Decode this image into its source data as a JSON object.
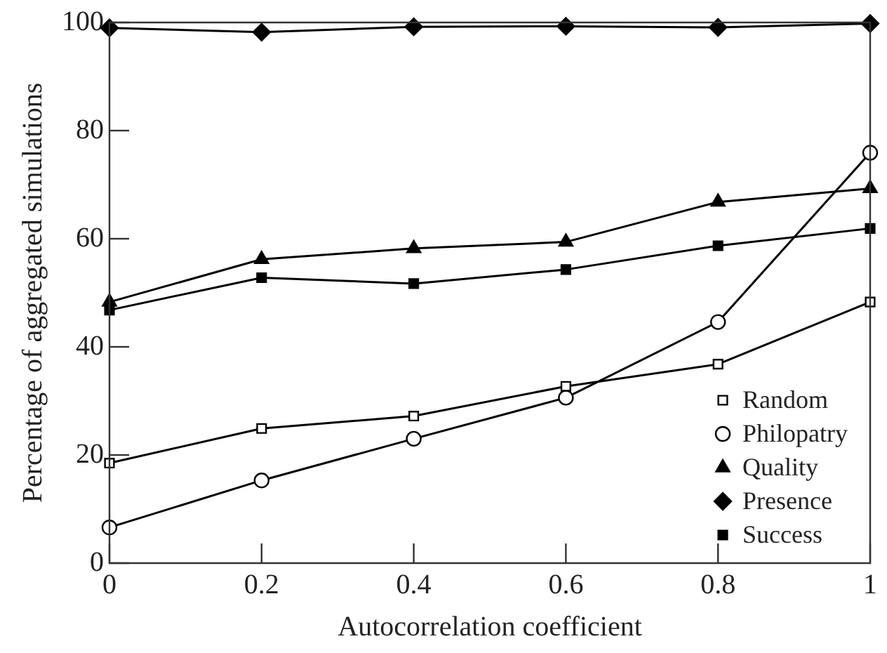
{
  "chart_data": {
    "type": "line",
    "xlabel": "Autocorrelation coefficient",
    "ylabel": "Percentage of aggregated simulations",
    "x": [
      0,
      0.2,
      0.4,
      0.6,
      0.8,
      1
    ],
    "series": [
      {
        "name": "Random",
        "color": "#000000",
        "marker": "square",
        "colors": [
          "#ffffff",
          "#ffffff",
          "#ffffff",
          "#ffffff",
          "#ffffff",
          "#ffffff"
        ],
        "values": [
          18.5,
          24.9,
          27.2,
          32.7,
          36.8,
          48.3
        ]
      },
      {
        "name": "Philopatry",
        "color": "#000000",
        "marker": "circle",
        "colors": [
          "#ffffff",
          "#ffffff",
          "#ffffff",
          "#ffffff",
          "#ffffff",
          "#ffffff"
        ],
        "values": [
          6.6,
          15.3,
          23,
          30.6,
          44.6,
          75.9
        ]
      },
      {
        "name": "Quality",
        "color": "#000000",
        "marker": "triangle",
        "values": [
          48.3,
          56.2,
          58.2,
          59.4,
          66.8,
          69.3
        ]
      },
      {
        "name": "Presence",
        "color": "#000000",
        "marker": "diamond",
        "values": [
          99,
          98.2,
          99.2,
          99.3,
          99.1,
          99.8
        ]
      },
      {
        "name": "Success",
        "color": "#000000",
        "marker": "square",
        "values": [
          46.8,
          52.8,
          51.7,
          54.3,
          58.7,
          61.9
        ]
      }
    ],
    "xlim": [
      0,
      1
    ],
    "xticks": [
      0,
      0.2,
      0.4,
      0.6,
      0.8,
      1
    ],
    "ylim": [
      0,
      100
    ],
    "yticks": [
      0,
      20,
      40,
      60,
      80,
      100
    ],
    "grid": false,
    "legend": "bottom right",
    "line_style": "solid"
  }
}
